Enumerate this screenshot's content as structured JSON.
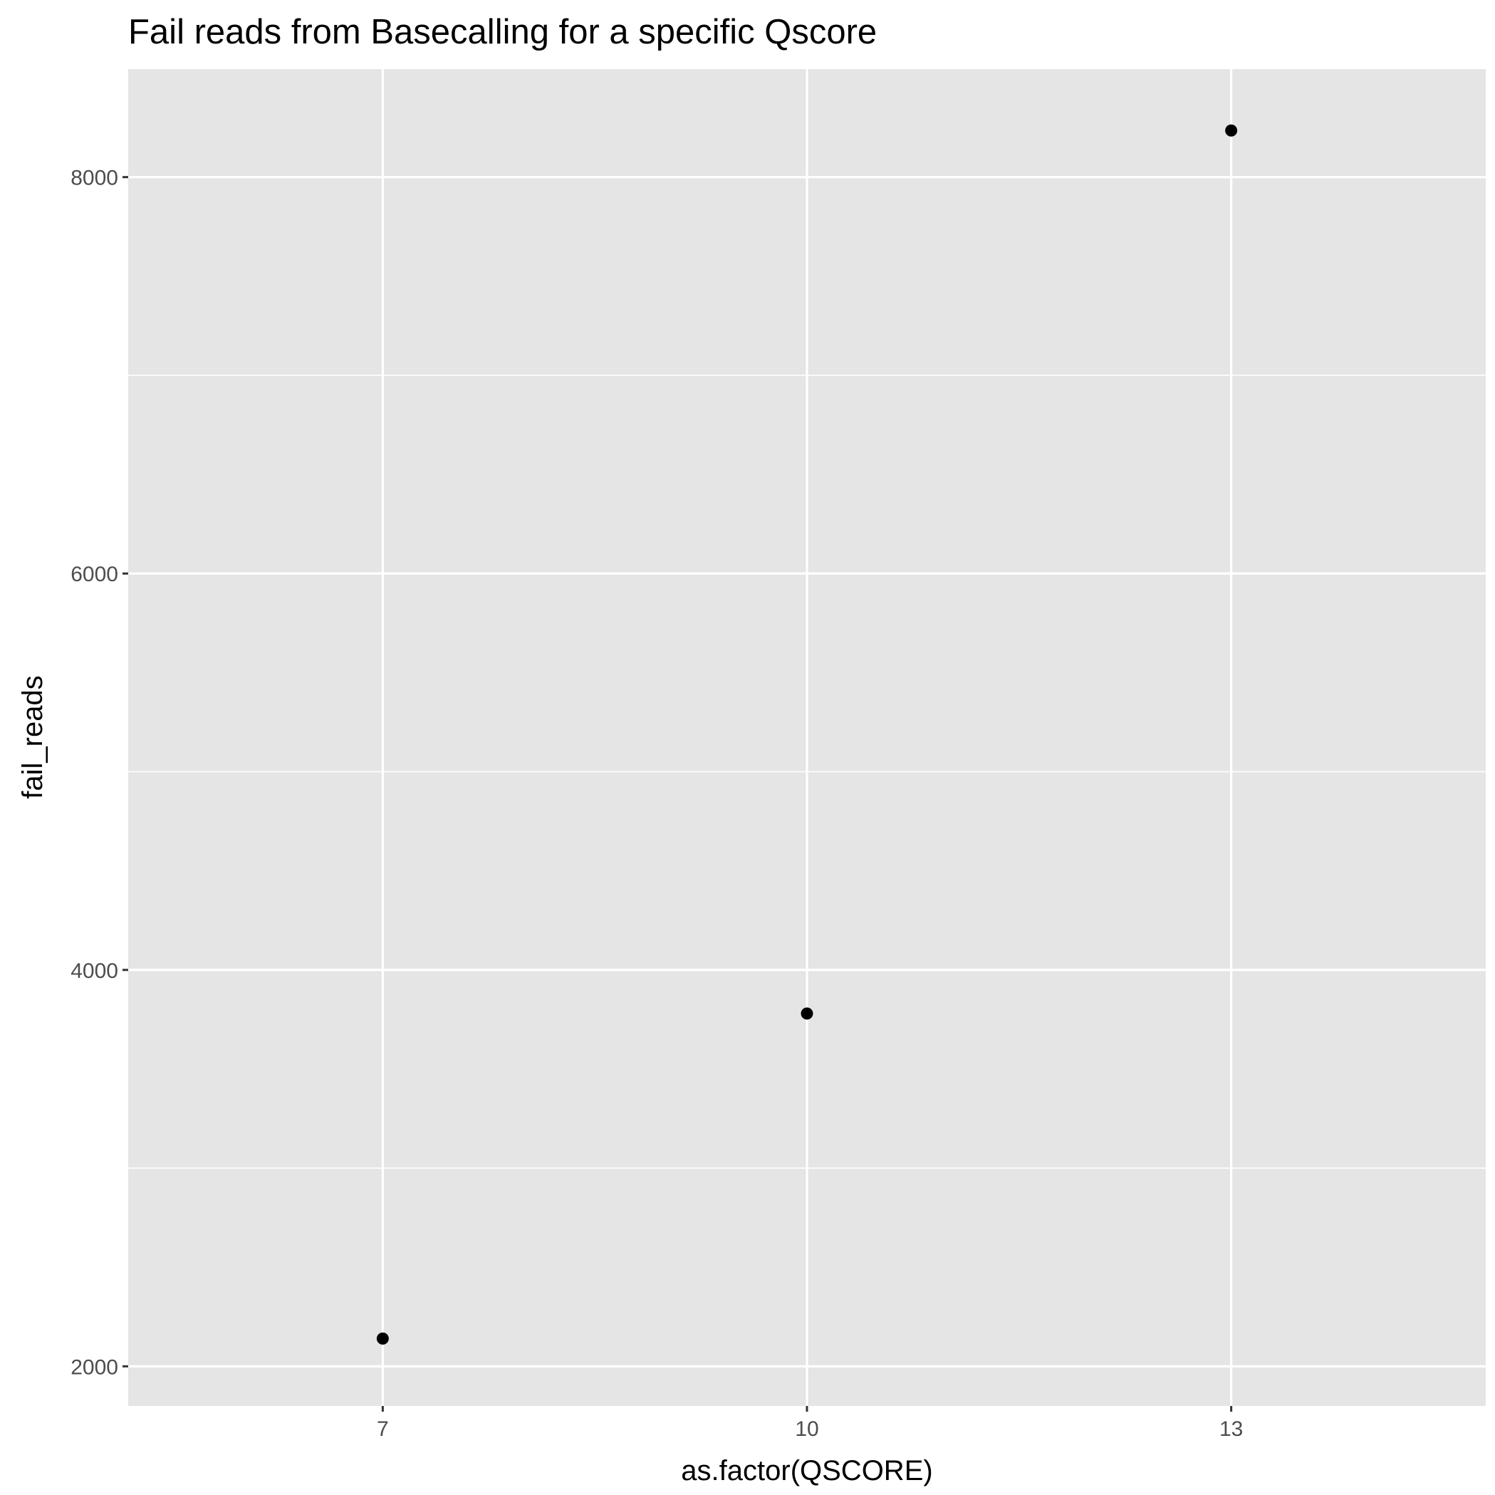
{
  "chart_data": {
    "type": "scatter",
    "title": "Fail reads from Basecalling for a specific Qscore",
    "xlabel": "as.factor(QSCORE)",
    "ylabel": "fail_reads",
    "x_is_factor": true,
    "categories": [
      "7",
      "10",
      "13"
    ],
    "x": [
      "7",
      "10",
      "13"
    ],
    "y": [
      2140,
      3780,
      8235
    ],
    "ylim": [
      1800,
      8545
    ],
    "y_major_ticks": [
      2000,
      4000,
      6000,
      8000
    ],
    "y_minor_ticks": [
      3000,
      5000,
      7000
    ],
    "grid": true,
    "legend": "none",
    "colors": {
      "panel": "#e5e5e5",
      "grid": "#ffffff",
      "point": "#000000",
      "tick_label": "#4d4d4d"
    }
  }
}
